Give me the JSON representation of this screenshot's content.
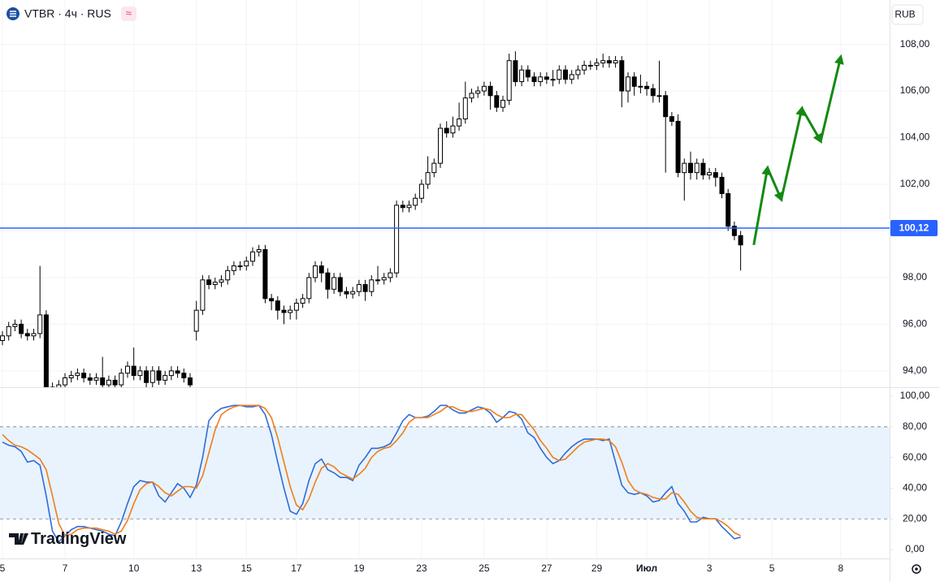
{
  "chart_data": {
    "type": "candlestick",
    "title": "VTBR · 4ч · RUS",
    "currency": "RUB",
    "watermark": "TradingView",
    "up_color": "#ffffff",
    "down_color": "#000000",
    "grid": true,
    "open": [
      95.3,
      95.5,
      95.9,
      96.0,
      95.6,
      95.5,
      95.6,
      96.4,
      93.3,
      93.2,
      93.4,
      93.7,
      93.8,
      93.9,
      93.7,
      93.6,
      93.7,
      93.4,
      93.6,
      93.4,
      93.9,
      94.2,
      93.8,
      94.0,
      93.5,
      94.0,
      93.6,
      93.8,
      94.0,
      93.9,
      93.7,
      95.7,
      96.6,
      97.9,
      97.7,
      97.8,
      97.9,
      98.3,
      98.5,
      98.5,
      98.7,
      99.1,
      99.2,
      97.1,
      97.0,
      96.6,
      96.5,
      96.6,
      96.9,
      97.1,
      98.0,
      98.5,
      98.2,
      97.5,
      98.0,
      97.4,
      97.3,
      97.4,
      97.7,
      97.4,
      97.9,
      97.9,
      98.0,
      98.2,
      101.1,
      101.0,
      101.1,
      101.4,
      102.0,
      102.5,
      102.9,
      104.4,
      104.2,
      104.5,
      104.8,
      105.7,
      105.9,
      106.0,
      106.2,
      105.8,
      105.3,
      105.6,
      107.3,
      106.4,
      106.9,
      106.6,
      106.4,
      106.6,
      106.5,
      106.5,
      106.9,
      106.5,
      106.7,
      106.9,
      107.1,
      107.1,
      107.2,
      107.3,
      107.2,
      107.3,
      106.0,
      106.6,
      106.2,
      106.2,
      106.1,
      105.8,
      105.8,
      104.9,
      104.7,
      102.5,
      102.9,
      102.5,
      102.9,
      102.4,
      102.5,
      102.3,
      101.6,
      100.2,
      99.8
    ],
    "high": [
      95.7,
      96.1,
      96.2,
      96.2,
      95.8,
      95.8,
      98.5,
      96.6,
      93.5,
      93.6,
      93.9,
      94.0,
      94.1,
      94.1,
      93.9,
      93.9,
      94.6,
      93.8,
      93.8,
      94.1,
      94.4,
      95.0,
      94.2,
      94.2,
      94.2,
      94.2,
      94.0,
      94.2,
      94.2,
      94.1,
      93.9,
      97.0,
      98.1,
      98.1,
      98.0,
      98.1,
      98.5,
      98.7,
      98.7,
      98.9,
      99.3,
      99.4,
      99.4,
      97.3,
      97.2,
      96.8,
      96.8,
      97.1,
      97.3,
      98.2,
      98.7,
      98.7,
      98.4,
      98.2,
      98.2,
      97.6,
      97.6,
      97.9,
      97.9,
      98.1,
      98.5,
      98.2,
      98.4,
      101.3,
      101.3,
      101.3,
      101.6,
      102.2,
      103.2,
      103.1,
      104.6,
      104.7,
      104.9,
      105.5,
      106.4,
      106.1,
      106.2,
      106.4,
      106.4,
      106.0,
      105.8,
      107.6,
      107.7,
      107.1,
      107.1,
      106.8,
      106.8,
      106.8,
      106.9,
      107.1,
      107.1,
      106.9,
      107.1,
      107.3,
      107.3,
      107.4,
      107.6,
      107.5,
      107.5,
      107.5,
      106.8,
      106.8,
      106.7,
      106.4,
      106.3,
      107.3,
      106.0,
      105.1,
      105.0,
      103.1,
      103.4,
      103.1,
      103.1,
      102.7,
      102.7,
      102.5,
      101.8,
      100.4,
      100.0
    ],
    "low": [
      95.1,
      95.3,
      95.7,
      95.4,
      95.3,
      95.3,
      95.4,
      93.1,
      93.0,
      93.0,
      93.2,
      93.5,
      93.6,
      93.5,
      93.4,
      93.4,
      93.2,
      93.2,
      93.2,
      93.2,
      93.7,
      93.6,
      93.6,
      93.3,
      93.3,
      93.4,
      93.4,
      93.6,
      93.7,
      93.5,
      93.2,
      95.3,
      96.4,
      97.5,
      97.5,
      97.6,
      97.7,
      98.1,
      98.3,
      98.3,
      98.5,
      98.9,
      96.9,
      96.6,
      96.2,
      96.0,
      96.2,
      96.2,
      96.7,
      96.9,
      97.8,
      97.8,
      97.1,
      97.3,
      97.2,
      97.1,
      97.1,
      97.2,
      97.0,
      97.2,
      97.7,
      97.7,
      97.8,
      98.0,
      100.8,
      100.8,
      100.9,
      101.2,
      101.8,
      102.3,
      102.7,
      104.0,
      104.0,
      104.3,
      104.6,
      105.5,
      105.7,
      105.8,
      105.2,
      105.1,
      105.1,
      105.4,
      106.2,
      106.2,
      106.4,
      106.2,
      106.2,
      106.3,
      106.2,
      106.3,
      106.3,
      106.3,
      106.5,
      106.7,
      106.9,
      106.9,
      107.0,
      107.0,
      107.0,
      105.3,
      105.5,
      105.8,
      105.9,
      105.8,
      105.5,
      105.5,
      102.5,
      104.5,
      102.3,
      101.3,
      102.2,
      102.2,
      102.2,
      102.2,
      101.9,
      101.4,
      100.0,
      99.6,
      98.3
    ],
    "close": [
      95.5,
      95.9,
      96.0,
      95.6,
      95.5,
      95.6,
      96.4,
      93.3,
      93.2,
      93.4,
      93.7,
      93.8,
      93.9,
      93.7,
      93.6,
      93.7,
      93.4,
      93.6,
      93.4,
      93.9,
      94.2,
      93.8,
      94.0,
      93.5,
      94.0,
      93.6,
      93.8,
      94.0,
      93.9,
      93.7,
      93.4,
      96.6,
      97.9,
      97.7,
      97.8,
      97.9,
      98.3,
      98.5,
      98.5,
      98.7,
      99.1,
      99.2,
      97.1,
      97.0,
      96.6,
      96.5,
      96.6,
      96.9,
      97.1,
      98.0,
      98.5,
      98.2,
      97.5,
      98.0,
      97.4,
      97.3,
      97.4,
      97.7,
      97.4,
      97.9,
      97.9,
      98.0,
      98.2,
      101.1,
      101.0,
      101.1,
      101.4,
      102.0,
      102.5,
      102.9,
      104.4,
      104.2,
      104.5,
      104.8,
      105.7,
      105.9,
      106.0,
      106.2,
      105.8,
      105.3,
      105.6,
      107.3,
      106.4,
      106.9,
      106.6,
      106.4,
      106.6,
      106.5,
      106.5,
      106.9,
      106.5,
      106.7,
      106.9,
      107.1,
      107.1,
      107.2,
      107.3,
      107.2,
      107.3,
      106.0,
      106.6,
      106.2,
      106.2,
      106.1,
      105.8,
      105.8,
      104.9,
      104.7,
      102.5,
      102.9,
      102.5,
      102.9,
      102.4,
      102.5,
      102.3,
      101.6,
      100.2,
      99.8,
      99.4
    ],
    "ylim": [
      93.3,
      109.9
    ],
    "yticks": [
      {
        "value": 94,
        "label": "94,00"
      },
      {
        "value": 96,
        "label": "96,00"
      },
      {
        "value": 98,
        "label": "98,00"
      },
      {
        "value": 100,
        "label": "100,00"
      },
      {
        "value": 102,
        "label": "102,00"
      },
      {
        "value": 104,
        "label": "104,00"
      },
      {
        "value": 106,
        "label": "106,00"
      },
      {
        "value": 108,
        "label": "108,00"
      }
    ],
    "xticks": [
      {
        "value": 0,
        "label": "5"
      },
      {
        "value": 10,
        "label": "7"
      },
      {
        "value": 21,
        "label": "10"
      },
      {
        "value": 31,
        "label": "13"
      },
      {
        "value": 39,
        "label": "15"
      },
      {
        "value": 47,
        "label": "17"
      },
      {
        "value": 57,
        "label": "19"
      },
      {
        "value": 67,
        "label": "23"
      },
      {
        "value": 77,
        "label": "25"
      },
      {
        "value": 87,
        "label": "27"
      },
      {
        "value": 95,
        "label": "29"
      },
      {
        "value": 103,
        "label": "Июл"
      },
      {
        "value": 113,
        "label": "3"
      },
      {
        "value": 123,
        "label": "5"
      },
      {
        "value": 134,
        "label": "8"
      }
    ],
    "last_price": {
      "value": 100.12,
      "label": "100,12",
      "color": "#2962ff"
    },
    "forecast": {
      "x": [
        120.1,
        122.3,
        124.5,
        127.8,
        130.8,
        134.0
      ],
      "values": [
        99.4,
        102.7,
        101.35,
        105.25,
        103.85,
        107.45
      ],
      "color": "#138a13"
    },
    "oscillator": {
      "type": "line",
      "ylim": [
        -5.8,
        105.3
      ],
      "yticks": [
        {
          "value": 0,
          "label": "0,00"
        },
        {
          "value": 20,
          "label": "20,00"
        },
        {
          "value": 40,
          "label": "40,00"
        },
        {
          "value": 60,
          "label": "60,00"
        },
        {
          "value": 80,
          "label": "80,00"
        },
        {
          "value": 100,
          "label": "100,00"
        }
      ],
      "bands": [
        20,
        80
      ],
      "band_color": "#e8f3fd",
      "series": [
        {
          "color": "#2f6bd9",
          "values": [
            70,
            68,
            67,
            64,
            57,
            58,
            55,
            35,
            12,
            5,
            9,
            13,
            15,
            15,
            14,
            13,
            12,
            10,
            9,
            18,
            30,
            41,
            45,
            44,
            44,
            35,
            31,
            37,
            43,
            40,
            34,
            42,
            60,
            84,
            89,
            92,
            93,
            94,
            94,
            93,
            93,
            94,
            88,
            75,
            57,
            40,
            25,
            23,
            30,
            45,
            56,
            59,
            52,
            50,
            47,
            47,
            45,
            55,
            60,
            66,
            66,
            67,
            69,
            76,
            84,
            88,
            86,
            86,
            87,
            90,
            94,
            94,
            91,
            89,
            89,
            91,
            93,
            92,
            89,
            83,
            86,
            90,
            89,
            85,
            76,
            73,
            66,
            60,
            56,
            58,
            63,
            67,
            70,
            72,
            72,
            72,
            71,
            72,
            57,
            42,
            37,
            36,
            37,
            35,
            31,
            32,
            37,
            41,
            30,
            25,
            18,
            18,
            21,
            20,
            20,
            15,
            11,
            7,
            8
          ]
        },
        {
          "color": "#f07d1a",
          "values": [
            75,
            71,
            68,
            67,
            65,
            62,
            59,
            52,
            35,
            17,
            9,
            10,
            13,
            14,
            14,
            14,
            13,
            12,
            10,
            12,
            19,
            30,
            39,
            43,
            44,
            41,
            37,
            35,
            38,
            41,
            41,
            40,
            48,
            63,
            78,
            88,
            91,
            93,
            94,
            94,
            94,
            94,
            92,
            86,
            73,
            57,
            41,
            29,
            26,
            33,
            44,
            53,
            56,
            54,
            50,
            48,
            46,
            49,
            53,
            60,
            64,
            66,
            67,
            71,
            76,
            83,
            86,
            86,
            86,
            88,
            90,
            93,
            93,
            91,
            90,
            90,
            91,
            92,
            91,
            88,
            86,
            86,
            88,
            88,
            83,
            78,
            71,
            66,
            60,
            58,
            59,
            63,
            67,
            70,
            71,
            72,
            72,
            71,
            67,
            57,
            45,
            39,
            37,
            36,
            34,
            33,
            33,
            37,
            36,
            31,
            25,
            21,
            20,
            20,
            20,
            18,
            15,
            11,
            9
          ]
        }
      ]
    }
  }
}
